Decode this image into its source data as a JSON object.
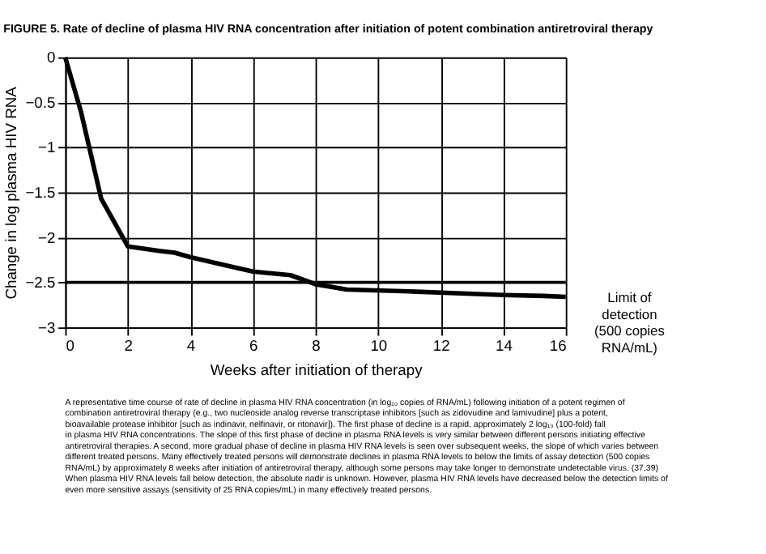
{
  "chart_data": {
    "type": "line",
    "title": "FIGURE 5. Rate of decline of plasma HIV RNA concentration after initiation of potent combination antiretroviral therapy",
    "xlabel": "Weeks after initiation of therapy",
    "ylabel": "Change in log plasma HIV RNA",
    "x": [
      0,
      0.5,
      1.15,
      2,
      3,
      3.5,
      4,
      5,
      6,
      7.2,
      8,
      9,
      11,
      12.5,
      14,
      15.3,
      16
    ],
    "series": [
      {
        "color": "#000000",
        "values": [
          0,
          -0.6,
          -1.57,
          -2.1,
          -2.15,
          -2.17,
          -2.22,
          -2.3,
          -2.38,
          -2.42,
          -2.52,
          -2.58,
          -2.6,
          -2.62,
          -2.64,
          -2.65,
          -2.66
        ]
      }
    ],
    "xlim": [
      0,
      16
    ],
    "xticks": [
      0,
      2,
      4,
      6,
      8,
      10,
      12,
      14,
      16
    ],
    "ylim": [
      -3,
      0
    ],
    "yticks": [
      -3,
      -2.5,
      -2,
      -1.5,
      -1,
      -0.5,
      0
    ],
    "grid": true,
    "marker": "none",
    "line_style": "solid",
    "ref_lines": [
      {
        "axis": "y",
        "value": -2.5,
        "label": "Limit of\ndetection\n(500 copies\nRNA/mL)",
        "color": "#000000",
        "line_style": "solid"
      }
    ],
    "annotations": [
      "A representative time course of rate of decline in plasma HIV RNA concentration (in log₁₀ copies of RNA/mL) following initiation of a potent regimen of combination antiretroviral therapy (e.g., two nucleoside analog reverse transcriptase inhibitors [such as zidovudine and lamivudine] plus a potent, bioavailable protease inhibitor [such as indinavir, nelfinavir, or ritonavir]). The first phase of decline is a rapid, approximately 2 log₁₀ (100-fold) fall in plasma HIV RNA concentrations. The slope of this first phase of decline in plasma RNA levels is very similar between different persons initiating effective antiretroviral therapies. A second, more gradual phase of decline in plasma HIV RNA levels is seen over subsequent weeks, the slope of which varies between different treated persons. Many effectively treated persons will demonstrate declines in plasma RNA levels to below the limits of assay detection (500 copies RNA/mL) by approximately 8 weeks after initiation of antiretroviral therapy, although some persons may take longer to demonstrate undetectable virus. (37,39) When plasma HIV RNA levels fall below detection, the absolute nadir is unknown. However, plasma HIV RNA levels have decreased below the detection limits of even more sensitive assays (sensitivity of 25 RNA copies/mL) in many effectively treated persons."
    ]
  }
}
